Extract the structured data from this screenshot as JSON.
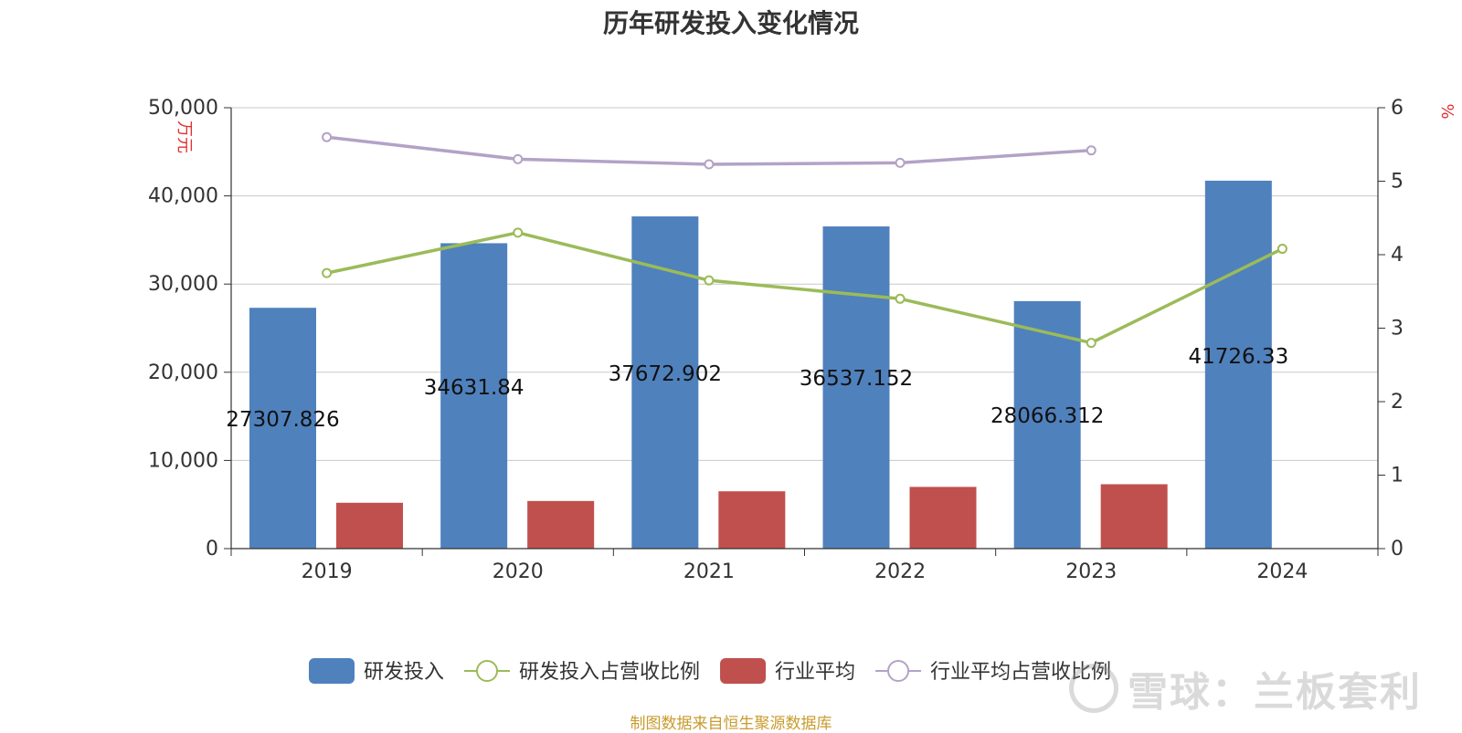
{
  "chart_data": {
    "type": "bar",
    "title": "历年研发投入变化情况",
    "categories": [
      "2019",
      "2020",
      "2021",
      "2022",
      "2023",
      "2024"
    ],
    "left_axis": {
      "unit": "万元",
      "ylim": [
        0,
        50000
      ],
      "ticks": [
        "0",
        "10,000",
        "20,000",
        "30,000",
        "40,000",
        "50,000"
      ]
    },
    "right_axis": {
      "unit": "%",
      "ylim": [
        0,
        6
      ],
      "ticks": [
        "0",
        "1",
        "2",
        "3",
        "4",
        "5",
        "6"
      ]
    },
    "grid": true,
    "legend_position": "bottom",
    "series": [
      {
        "name": "研发投入",
        "type": "bar",
        "axis": "left",
        "color": "#4f81bd",
        "values": [
          27307.826,
          34631.84,
          37672.902,
          36537.152,
          28066.312,
          41726.33
        ],
        "labels": [
          "27307.826",
          "34631.84",
          "37672.902",
          "36537.152",
          "28066.312",
          "41726.33"
        ]
      },
      {
        "name": "研发投入占营收比例",
        "type": "line",
        "axis": "right",
        "color": "#9bbb59",
        "values": [
          3.75,
          4.3,
          3.65,
          3.4,
          2.8,
          4.08
        ]
      },
      {
        "name": "行业平均",
        "type": "bar",
        "axis": "left",
        "color": "#c0504d",
        "values": [
          5200,
          5400,
          6500,
          7000,
          7300,
          null
        ]
      },
      {
        "name": "行业平均占营收比例",
        "type": "line",
        "axis": "right",
        "color": "#b3a2c7",
        "values": [
          5.6,
          5.3,
          5.23,
          5.25,
          5.42,
          null
        ]
      }
    ]
  },
  "footer": {
    "source": "制图数据来自恒生聚源数据库"
  },
  "watermark": {
    "text": "雪球：兰板套利"
  }
}
